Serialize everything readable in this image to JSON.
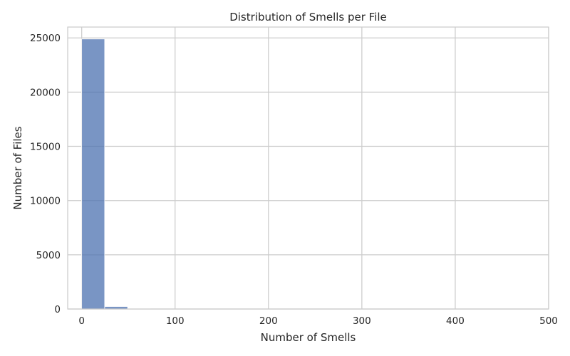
{
  "chart_data": {
    "type": "bar",
    "title": "Distribution of Smells per File",
    "xlabel": "Number of Smells",
    "ylabel": "Number of Files",
    "xlim": [
      -15,
      500
    ],
    "ylim": [
      0,
      26000
    ],
    "xticks": [
      0,
      100,
      200,
      300,
      400,
      500
    ],
    "yticks": [
      0,
      5000,
      10000,
      15000,
      20000,
      25000
    ],
    "grid": true,
    "bar_color": "#4c72b0",
    "bins": [
      {
        "x0": 0,
        "x1": 24.6,
        "count": 24900
      },
      {
        "x0": 24.6,
        "x1": 49.2,
        "count": 230
      },
      {
        "x0": 49.2,
        "x1": 73.8,
        "count": 25
      },
      {
        "x0": 73.8,
        "x1": 98.4,
        "count": 8
      },
      {
        "x0": 98.4,
        "x1": 123.0,
        "count": 4
      },
      {
        "x0": 123.0,
        "x1": 147.6,
        "count": 2
      },
      {
        "x0": 147.6,
        "x1": 172.2,
        "count": 1
      },
      {
        "x0": 172.2,
        "x1": 196.8,
        "count": 1
      },
      {
        "x0": 196.8,
        "x1": 221.4,
        "count": 1
      },
      {
        "x0": 221.4,
        "x1": 246.0,
        "count": 0
      },
      {
        "x0": 246.0,
        "x1": 270.6,
        "count": 1
      },
      {
        "x0": 270.6,
        "x1": 295.2,
        "count": 0
      },
      {
        "x0": 295.2,
        "x1": 319.8,
        "count": 0
      },
      {
        "x0": 319.8,
        "x1": 344.4,
        "count": 0
      },
      {
        "x0": 344.4,
        "x1": 369.0,
        "count": 1
      },
      {
        "x0": 369.0,
        "x1": 393.6,
        "count": 0
      },
      {
        "x0": 393.6,
        "x1": 418.2,
        "count": 0
      },
      {
        "x0": 418.2,
        "x1": 442.8,
        "count": 0
      },
      {
        "x0": 442.8,
        "x1": 467.4,
        "count": 0
      },
      {
        "x0": 467.4,
        "x1": 492.0,
        "count": 1
      }
    ]
  }
}
